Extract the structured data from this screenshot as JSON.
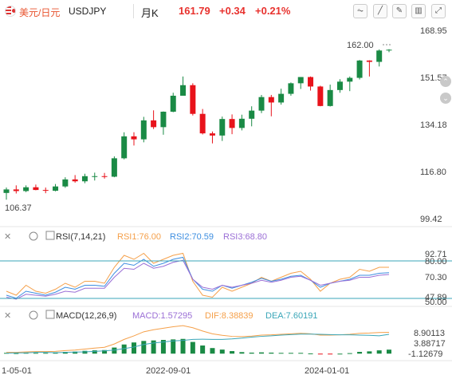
{
  "header": {
    "pair": "美元/日元",
    "symbol": "USDJPY",
    "period": "月K",
    "price": "161.79",
    "change": "+0.34",
    "change_pct": "+0.21%"
  },
  "main_axis": {
    "labels": [
      "168.95",
      "151.57",
      "134.18",
      "116.80",
      "99.42"
    ],
    "values": [
      168.95,
      151.57,
      134.18,
      116.8,
      99.42
    ],
    "last_price_label": "162.00",
    "low_label": "106.37"
  },
  "rsi": {
    "title": "RSI(7,14,21)",
    "rsi1_label": "RSI1:76.00",
    "rsi2_label": "RSI2:70.59",
    "rsi3_label": "RSI3:68.80",
    "axis_labels": [
      "92.71",
      "80.00",
      "70.30",
      "47.89",
      "50.00"
    ],
    "colors": {
      "rsi1": "#f5a04a",
      "rsi2": "#3d8ee0",
      "rsi3": "#9b6fd6",
      "ref": "#3aa6b8"
    }
  },
  "macd": {
    "title": "MACD(12,26,9)",
    "macd_label": "MACD:1.57295",
    "dif_label": "DIF:8.38839",
    "dea_label": "DEA:7.60191",
    "axis_labels": [
      "8.90113",
      "3.88717",
      "-1.12679"
    ],
    "colors": {
      "dif": "#f5a04a",
      "dea": "#3aa6b8",
      "bar": "#1a8a45"
    }
  },
  "x_axis": {
    "labels": [
      "1-05-01",
      "2022-09-01",
      "2024-01-01"
    ]
  },
  "colors": {
    "up": "#1a8a45",
    "down": "#e8131b",
    "accent": "#e8532e"
  },
  "chart_data": [
    {
      "type": "candlestick",
      "title": "USDJPY 月K",
      "ylim": [
        99.42,
        168.95
      ],
      "candles": [
        {
          "o": 108.9,
          "h": 110.9,
          "l": 106.4,
          "c": 110.2
        },
        {
          "o": 110.2,
          "h": 111.7,
          "l": 108.7,
          "c": 109.6
        },
        {
          "o": 109.6,
          "h": 111.7,
          "l": 109.2,
          "c": 111.0
        },
        {
          "o": 111.0,
          "h": 112.0,
          "l": 109.9,
          "c": 110.0
        },
        {
          "o": 110.0,
          "h": 110.9,
          "l": 108.8,
          "c": 109.7
        },
        {
          "o": 109.7,
          "h": 112.2,
          "l": 109.5,
          "c": 111.3
        },
        {
          "o": 111.3,
          "h": 114.7,
          "l": 110.8,
          "c": 113.9
        },
        {
          "o": 113.9,
          "h": 115.5,
          "l": 112.7,
          "c": 113.2
        },
        {
          "o": 113.2,
          "h": 116.0,
          "l": 112.5,
          "c": 115.1
        },
        {
          "o": 115.1,
          "h": 116.4,
          "l": 113.5,
          "c": 115.1
        },
        {
          "o": 115.1,
          "h": 116.3,
          "l": 114.2,
          "c": 114.9
        },
        {
          "o": 114.9,
          "h": 122.4,
          "l": 114.7,
          "c": 121.7
        },
        {
          "o": 121.7,
          "h": 131.3,
          "l": 121.3,
          "c": 129.8
        },
        {
          "o": 129.8,
          "h": 131.3,
          "l": 126.4,
          "c": 128.7
        },
        {
          "o": 128.7,
          "h": 137.0,
          "l": 127.6,
          "c": 135.7
        },
        {
          "o": 135.7,
          "h": 139.4,
          "l": 132.5,
          "c": 133.2
        },
        {
          "o": 133.2,
          "h": 139.0,
          "l": 130.4,
          "c": 138.9
        },
        {
          "o": 138.9,
          "h": 145.9,
          "l": 138.7,
          "c": 144.8
        },
        {
          "o": 144.8,
          "h": 151.9,
          "l": 144.9,
          "c": 148.7
        },
        {
          "o": 148.7,
          "h": 149.4,
          "l": 137.5,
          "c": 138.1
        },
        {
          "o": 138.1,
          "h": 139.9,
          "l": 130.5,
          "c": 130.9
        },
        {
          "o": 130.9,
          "h": 131.6,
          "l": 127.2,
          "c": 130.1
        },
        {
          "o": 130.1,
          "h": 137.1,
          "l": 128.1,
          "c": 136.2
        },
        {
          "o": 136.2,
          "h": 137.9,
          "l": 130.6,
          "c": 132.9
        },
        {
          "o": 132.9,
          "h": 137.8,
          "l": 132.0,
          "c": 136.3
        },
        {
          "o": 136.3,
          "h": 140.9,
          "l": 133.5,
          "c": 139.3
        },
        {
          "o": 139.3,
          "h": 145.1,
          "l": 138.4,
          "c": 144.3
        },
        {
          "o": 144.3,
          "h": 145.1,
          "l": 137.2,
          "c": 142.3
        },
        {
          "o": 142.3,
          "h": 147.4,
          "l": 141.5,
          "c": 145.5
        },
        {
          "o": 145.5,
          "h": 149.7,
          "l": 144.8,
          "c": 149.4
        },
        {
          "o": 149.4,
          "h": 151.7,
          "l": 147.3,
          "c": 151.7
        },
        {
          "o": 151.7,
          "h": 151.9,
          "l": 146.7,
          "c": 148.2
        },
        {
          "o": 148.2,
          "h": 148.5,
          "l": 140.9,
          "c": 141.0
        },
        {
          "o": 141.0,
          "h": 148.9,
          "l": 140.8,
          "c": 146.9
        },
        {
          "o": 146.9,
          "h": 150.9,
          "l": 145.9,
          "c": 150.0
        },
        {
          "o": 150.0,
          "h": 151.9,
          "l": 146.5,
          "c": 151.4
        },
        {
          "o": 151.4,
          "h": 158.0,
          "l": 150.8,
          "c": 157.8
        },
        {
          "o": 157.8,
          "h": 157.9,
          "l": 151.9,
          "c": 157.3
        },
        {
          "o": 157.3,
          "h": 161.9,
          "l": 155.6,
          "c": 161.5
        },
        {
          "o": 161.5,
          "h": 162.0,
          "l": 160.9,
          "c": 161.79
        }
      ]
    },
    {
      "type": "line",
      "title": "RSI(7,14,21)",
      "ylim": [
        40,
        100
      ],
      "series": [
        {
          "name": "RSI1",
          "values": [
            52,
            48,
            58,
            52,
            50,
            54,
            60,
            56,
            62,
            62,
            60,
            76,
            88,
            84,
            90,
            80,
            84,
            88,
            90,
            62,
            48,
            46,
            56,
            52,
            56,
            60,
            66,
            62,
            66,
            70,
            72,
            64,
            52,
            60,
            64,
            66,
            74,
            72,
            76,
            76
          ]
        },
        {
          "name": "RSI2",
          "values": [
            48,
            45,
            52,
            50,
            48,
            51,
            56,
            54,
            58,
            58,
            57,
            70,
            80,
            78,
            84,
            77,
            80,
            84,
            86,
            64,
            54,
            52,
            58,
            55,
            58,
            61,
            65,
            62,
            64,
            67,
            68,
            63,
            56,
            60,
            62,
            64,
            68,
            68,
            70,
            70.59
          ]
        },
        {
          "name": "RSI3",
          "values": [
            46,
            44,
            49,
            48,
            47,
            49,
            52,
            51,
            55,
            55,
            55,
            66,
            75,
            74,
            80,
            75,
            77,
            81,
            83,
            64,
            56,
            54,
            58,
            56,
            58,
            60,
            63,
            61,
            63,
            66,
            67,
            63,
            58,
            60,
            62,
            63,
            66,
            66,
            68,
            68.8
          ]
        }
      ]
    },
    {
      "type": "bar",
      "title": "MACD(12,26,9)",
      "ylim": [
        -1.5,
        12
      ],
      "series": [
        {
          "name": "MACD",
          "values": [
            0.3,
            0.2,
            0.4,
            0.3,
            0.3,
            0.5,
            0.7,
            0.8,
            1.1,
            1.3,
            1.4,
            2.4,
            3.6,
            4.4,
            5.0,
            5.2,
            5.4,
            5.6,
            5.8,
            4.6,
            3.2,
            2.2,
            1.6,
            1.0,
            0.6,
            0.4,
            0.5,
            0.4,
            0.3,
            0.3,
            0.3,
            0.1,
            -0.3,
            -0.2,
            0.0,
            0.2,
            0.7,
            0.9,
            1.3,
            1.57295
          ]
        },
        {
          "name": "DIF",
          "values": [
            0.5,
            0.5,
            0.7,
            0.8,
            0.8,
            0.9,
            1.2,
            1.4,
            1.8,
            2.2,
            2.5,
            3.8,
            5.6,
            7.0,
            8.6,
            9.4,
            10.0,
            10.6,
            11.0,
            10.2,
            8.9,
            7.8,
            7.2,
            6.8,
            6.7,
            6.9,
            7.3,
            7.4,
            7.6,
            7.8,
            8.0,
            7.8,
            7.3,
            7.3,
            7.4,
            7.6,
            8.0,
            8.1,
            8.3,
            8.38839
          ]
        },
        {
          "name": "DEA",
          "values": [
            0.2,
            0.3,
            0.3,
            0.5,
            0.5,
            0.4,
            0.5,
            0.6,
            0.7,
            0.9,
            1.1,
            1.4,
            2.0,
            2.6,
            3.6,
            4.2,
            4.6,
            5.0,
            5.2,
            5.6,
            5.7,
            5.6,
            5.6,
            5.8,
            6.1,
            6.5,
            6.8,
            7.0,
            7.3,
            7.5,
            7.7,
            7.7,
            7.6,
            7.5,
            7.4,
            7.4,
            7.3,
            7.2,
            7.0,
            7.60191
          ]
        }
      ]
    }
  ]
}
